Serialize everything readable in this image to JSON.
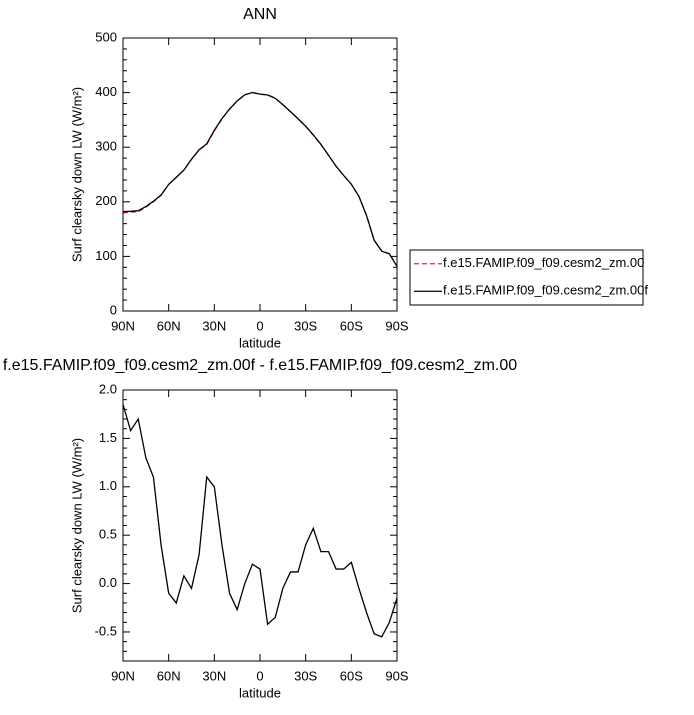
{
  "chart_data": [
    {
      "type": "line",
      "title": "ANN",
      "xlabel": "latitude",
      "ylabel": "Surf clearsky down LW (W/m²)",
      "x": [
        90,
        85,
        80,
        75,
        70,
        65,
        60,
        55,
        50,
        45,
        40,
        35,
        30,
        25,
        20,
        15,
        10,
        5,
        0,
        -5,
        -10,
        -15,
        -20,
        -25,
        -30,
        -35,
        -40,
        -45,
        -50,
        -55,
        -60,
        -65,
        -70,
        -75,
        -80,
        -85,
        -90
      ],
      "xlim": [
        90,
        -90
      ],
      "xticks": [
        {
          "value": 90,
          "label": "90N"
        },
        {
          "value": 60,
          "label": "60N"
        },
        {
          "value": 30,
          "label": "30N"
        },
        0,
        {
          "value": -30,
          "label": "30S"
        },
        {
          "value": -60,
          "label": "60S"
        },
        {
          "value": -90,
          "label": "90S"
        }
      ],
      "ylim": [
        0,
        500
      ],
      "yticks": [
        0,
        100,
        200,
        300,
        400,
        500
      ],
      "legend": "right",
      "series": [
        {
          "name": "f.e15.FAMIP.f09_f09.cesm2_zm.00",
          "color": "#e8262b",
          "line_style": "dashed",
          "values": [
            180,
            181,
            182,
            190,
            200,
            212,
            232,
            245,
            258,
            278,
            295,
            305,
            330,
            352,
            370,
            385,
            396,
            400,
            397,
            396,
            390,
            378,
            365,
            352,
            338,
            322,
            305,
            285,
            265,
            248,
            232,
            210,
            175,
            130,
            110,
            105,
            82
          ]
        },
        {
          "name": "f.e15.FAMIP.f09_f09.cesm2_zm.00f",
          "color": "#000000",
          "line_style": "solid",
          "values": [
            181.85,
            182.58,
            183.7,
            191.3,
            201.1,
            212.4,
            231.9,
            244.8,
            258.08,
            277.95,
            295.3,
            306.1,
            331,
            352.4,
            369.9,
            384.73,
            396,
            400.2,
            397.15,
            395.58,
            389.65,
            377.95,
            365.12,
            352.12,
            338.4,
            322.57,
            305.33,
            285.33,
            265.15,
            248.15,
            232.22,
            209.95,
            174.7,
            129.48,
            109.45,
            104.6,
            81.85
          ]
        }
      ]
    },
    {
      "type": "line",
      "title": "f.e15.FAMIP.f09_f09.cesm2_zm.00f - f.e15.FAMIP.f09_f09.cesm2_zm.00",
      "xlabel": "latitude",
      "ylabel": "Surf clearsky down LW (W/m²)",
      "x": [
        90,
        85,
        80,
        75,
        70,
        65,
        60,
        55,
        50,
        45,
        40,
        35,
        30,
        25,
        20,
        15,
        10,
        5,
        0,
        -5,
        -10,
        -15,
        -20,
        -25,
        -30,
        -35,
        -40,
        -45,
        -50,
        -55,
        -60,
        -65,
        -70,
        -75,
        -80,
        -85,
        -90
      ],
      "xlim": [
        90,
        -90
      ],
      "xticks": [
        {
          "value": 90,
          "label": "90N"
        },
        {
          "value": 60,
          "label": "60N"
        },
        {
          "value": 30,
          "label": "30N"
        },
        0,
        {
          "value": -30,
          "label": "30S"
        },
        {
          "value": -60,
          "label": "60S"
        },
        {
          "value": -90,
          "label": "90S"
        }
      ],
      "ylim": [
        -0.8,
        2.0
      ],
      "yticks": [
        {
          "value": -0.5,
          "label": "-0.5"
        },
        {
          "value": 0,
          "label": "0.0"
        },
        {
          "value": 0.5,
          "label": "0.5"
        },
        {
          "value": 1,
          "label": "1.0"
        },
        {
          "value": 1.5,
          "label": "1.5"
        },
        {
          "value": 2,
          "label": "2.0"
        }
      ],
      "series": [
        {
          "color": "#000000",
          "line_style": "solid",
          "values": [
            1.85,
            1.58,
            1.7,
            1.3,
            1.1,
            0.4,
            -0.1,
            -0.2,
            0.08,
            -0.05,
            0.3,
            1.1,
            1.0,
            0.4,
            -0.1,
            -0.27,
            0,
            0.2,
            0.15,
            -0.42,
            -0.35,
            -0.05,
            0.12,
            0.12,
            0.4,
            0.57,
            0.33,
            0.33,
            0.15,
            0.15,
            0.22,
            -0.05,
            -0.3,
            -0.52,
            -0.55,
            -0.4,
            -0.15
          ]
        }
      ]
    }
  ]
}
